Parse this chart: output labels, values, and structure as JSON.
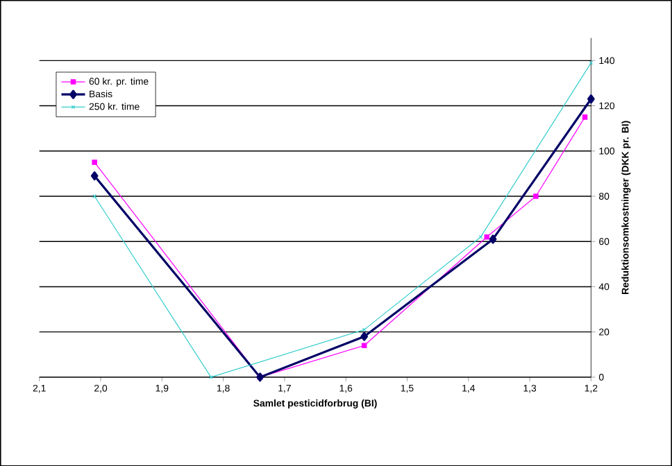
{
  "chart_data": {
    "type": "line",
    "xlabel": "Samlet pesticidforbrug (BI)",
    "ylabel": "Reduktionsomkostninger (DKK pr. BI)",
    "xlim": [
      2.1,
      1.2
    ],
    "xticks": [
      {
        "value": 2.1,
        "label": "2,1"
      },
      {
        "value": 2.0,
        "label": "2,0"
      },
      {
        "value": 1.9,
        "label": "1,9"
      },
      {
        "value": 1.8,
        "label": "1,8"
      },
      {
        "value": 1.7,
        "label": "1,7"
      },
      {
        "value": 1.6,
        "label": "1,6"
      },
      {
        "value": 1.5,
        "label": "1,5"
      },
      {
        "value": 1.4,
        "label": "1,4"
      },
      {
        "value": 1.3,
        "label": "1,3"
      },
      {
        "value": 1.2,
        "label": "1,2"
      }
    ],
    "ylim": [
      0,
      150
    ],
    "yticks": [
      0,
      20,
      40,
      60,
      80,
      100,
      120,
      140
    ],
    "grid": "y",
    "legend": "top left",
    "series": [
      {
        "name": "60 kr. pr. time",
        "color": "#ff00ff",
        "marker": "square",
        "x": [
          2.01,
          1.74,
          1.57,
          1.37,
          1.29,
          1.21
        ],
        "values": [
          95,
          0,
          14,
          62,
          80,
          115
        ]
      },
      {
        "name": "Basis",
        "color": "#000066",
        "marker": "diamond",
        "x": [
          2.01,
          1.74,
          1.57,
          1.36,
          1.2
        ],
        "values": [
          89,
          0,
          18,
          61,
          123
        ]
      },
      {
        "name": "250 kr. time",
        "color": "#33cccc",
        "marker": "cross",
        "x": [
          2.01,
          1.82,
          1.57,
          1.38,
          1.2
        ],
        "values": [
          80,
          0,
          21,
          62,
          139
        ]
      }
    ]
  }
}
